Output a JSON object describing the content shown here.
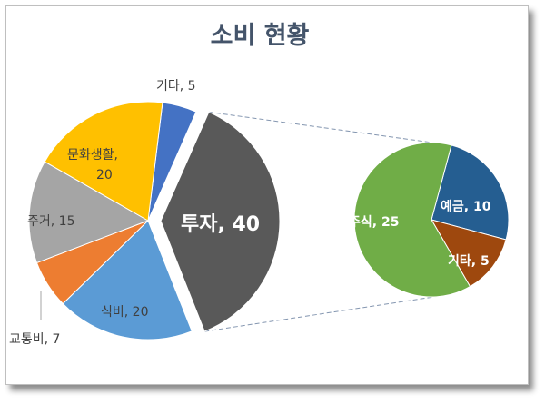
{
  "chart_data": {
    "type": "pie",
    "subtype": "pie-of-pie",
    "title": "소비 현황",
    "main_slices": [
      {
        "label": "기타",
        "value": 5,
        "color": "#4472c4",
        "text": "기타, 5"
      },
      {
        "label": "투자",
        "value": 40,
        "color": "#595959",
        "text": "투자, 40"
      },
      {
        "label": "식비",
        "value": 20,
        "color": "#5b9bd5",
        "text": "식비, 20"
      },
      {
        "label": "교통비",
        "value": 7,
        "color": "#ed7d31",
        "text": "교통비, 7"
      },
      {
        "label": "주거",
        "value": 15,
        "color": "#a5a5a5",
        "text": "주거, 15"
      },
      {
        "label": "문화생활",
        "value": 20,
        "color": "#ffc000",
        "text_line1": "문화생활,",
        "text_line2": "20"
      }
    ],
    "secondary_slices": [
      {
        "label": "예금",
        "value": 10,
        "color": "#255e91",
        "text": "예금, 10"
      },
      {
        "label": "기타",
        "value": 5,
        "color": "#9e480e",
        "text": "기타, 5"
      },
      {
        "label": "주식",
        "value": 25,
        "color": "#70ad47",
        "text": "주식, 25"
      }
    ],
    "connector_color": "#8496b0"
  }
}
